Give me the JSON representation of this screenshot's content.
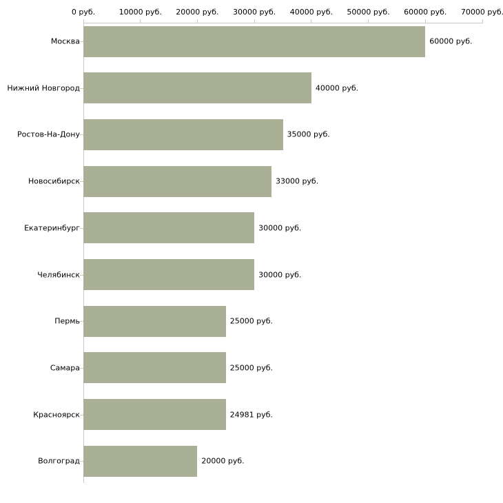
{
  "chart_data": {
    "type": "bar",
    "orientation": "horizontal",
    "title": "",
    "xlabel": "",
    "ylabel": "",
    "categories": [
      "Москва",
      "Нижний Новгород",
      "Ростов-На-Дону",
      "Новосибирск",
      "Екатеринбург",
      "Челябинск",
      "Пермь",
      "Самара",
      "Красноярск",
      "Волгоград"
    ],
    "values": [
      60000,
      40000,
      35000,
      33000,
      30000,
      30000,
      25000,
      25000,
      24981,
      20000
    ],
    "value_labels": [
      "60000 руб.",
      "40000 руб.",
      "35000 руб.",
      "33000 руб.",
      "30000 руб.",
      "30000 руб.",
      "25000 руб.",
      "25000 руб.",
      "24981 руб.",
      "20000 руб."
    ],
    "x_axis": {
      "position": "top",
      "min": 0,
      "max": 70000,
      "tick_values": [
        0,
        10000,
        20000,
        30000,
        40000,
        50000,
        60000,
        70000
      ],
      "tick_labels": [
        "0 руб.",
        "10000 руб.",
        "20000 руб.",
        "30000 руб.",
        "40000 руб.",
        "50000 руб.",
        "60000 руб.",
        "70000 руб."
      ]
    },
    "grid": false,
    "legend": false,
    "colors": {
      "bar": "#aab095",
      "axis_line": "#c8c8c8",
      "tick": "#cfcbab",
      "text": "#000000",
      "background": "#ffffff"
    }
  }
}
